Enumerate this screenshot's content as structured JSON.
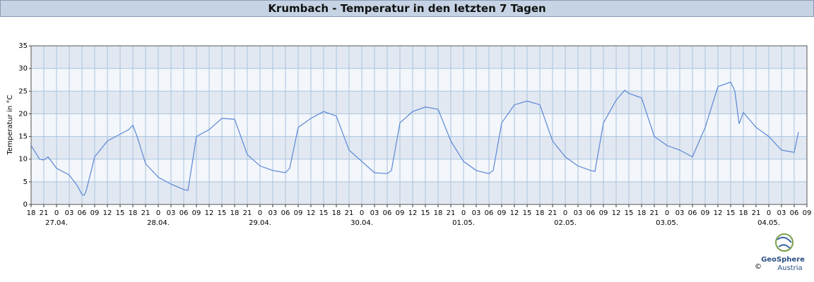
{
  "chart_data": {
    "type": "line",
    "title": "Krumbach - Temperatur in den letzten 7 Tagen",
    "y_label": "Temperatur in °C",
    "color": "#5b87d6",
    "x": [
      0,
      2,
      3,
      4,
      6,
      9,
      11,
      12,
      12.5,
      13,
      15,
      18,
      21,
      23,
      24,
      25,
      27,
      30,
      33,
      36,
      37,
      39,
      42,
      45,
      48,
      51,
      54,
      57,
      60,
      61,
      63,
      66,
      69,
      72,
      75,
      78,
      81,
      84,
      85,
      87,
      90,
      93,
      96,
      99,
      102,
      105,
      108,
      109,
      111,
      114,
      117,
      120,
      123,
      126,
      129,
      132,
      133,
      135,
      138,
      140,
      141,
      144,
      147,
      150,
      153,
      156,
      159,
      162,
      165,
      166,
      167,
      168,
      171,
      174,
      177,
      180,
      181
    ],
    "values": [
      13,
      10,
      9.8,
      10.5,
      8,
      6.5,
      4,
      2.2,
      2,
      3,
      10.5,
      14,
      15.5,
      16.5,
      17.5,
      15,
      9,
      6,
      4.5,
      3.3,
      3.1,
      15,
      16.5,
      19,
      18.8,
      11,
      8.5,
      7.5,
      7,
      8,
      17,
      19,
      20.5,
      19.5,
      12,
      9.5,
      7,
      6.8,
      7.5,
      18,
      20.5,
      21.5,
      21,
      14,
      9.5,
      7.5,
      6.8,
      7.5,
      18,
      22,
      22.8,
      22,
      14,
      10.5,
      8.5,
      7.5,
      7.3,
      18,
      23,
      25.2,
      24.5,
      23.5,
      15,
      13,
      12,
      10.5,
      17,
      26,
      27,
      25,
      17.8,
      20.3,
      17,
      15,
      12,
      11.5,
      16
    ],
    "xlim": [
      0,
      183
    ],
    "ylim": [
      0,
      35
    ],
    "yticks": [
      0,
      5,
      10,
      15,
      20,
      25,
      30,
      35
    ],
    "xticks": [
      {
        "value": 0,
        "label": "18"
      },
      {
        "value": 3,
        "label": "21"
      },
      {
        "value": 6,
        "label": "0"
      },
      {
        "value": 9,
        "label": "03"
      },
      {
        "value": 12,
        "label": "06"
      },
      {
        "value": 15,
        "label": "09"
      },
      {
        "value": 18,
        "label": "12"
      },
      {
        "value": 21,
        "label": "15"
      },
      {
        "value": 24,
        "label": "18"
      },
      {
        "value": 27,
        "label": "21"
      },
      {
        "value": 30,
        "label": "0"
      },
      {
        "value": 33,
        "label": "03"
      },
      {
        "value": 36,
        "label": "06"
      },
      {
        "value": 39,
        "label": "09"
      },
      {
        "value": 42,
        "label": "12"
      },
      {
        "value": 45,
        "label": "15"
      },
      {
        "value": 48,
        "label": "18"
      },
      {
        "value": 51,
        "label": "21"
      },
      {
        "value": 54,
        "label": "0"
      },
      {
        "value": 57,
        "label": "03"
      },
      {
        "value": 60,
        "label": "06"
      },
      {
        "value": 63,
        "label": "09"
      },
      {
        "value": 66,
        "label": "12"
      },
      {
        "value": 69,
        "label": "15"
      },
      {
        "value": 72,
        "label": "18"
      },
      {
        "value": 75,
        "label": "21"
      },
      {
        "value": 78,
        "label": "0"
      },
      {
        "value": 81,
        "label": "03"
      },
      {
        "value": 84,
        "label": "06"
      },
      {
        "value": 87,
        "label": "09"
      },
      {
        "value": 90,
        "label": "12"
      },
      {
        "value": 93,
        "label": "15"
      },
      {
        "value": 96,
        "label": "18"
      },
      {
        "value": 99,
        "label": "21"
      },
      {
        "value": 102,
        "label": "0"
      },
      {
        "value": 105,
        "label": "03"
      },
      {
        "value": 108,
        "label": "06"
      },
      {
        "value": 111,
        "label": "09"
      },
      {
        "value": 114,
        "label": "12"
      },
      {
        "value": 117,
        "label": "15"
      },
      {
        "value": 120,
        "label": "18"
      },
      {
        "value": 123,
        "label": "21"
      },
      {
        "value": 126,
        "label": "0"
      },
      {
        "value": 129,
        "label": "03"
      },
      {
        "value": 132,
        "label": "06"
      },
      {
        "value": 135,
        "label": "09"
      },
      {
        "value": 138,
        "label": "12"
      },
      {
        "value": 141,
        "label": "15"
      },
      {
        "value": 144,
        "label": "18"
      },
      {
        "value": 147,
        "label": "21"
      },
      {
        "value": 150,
        "label": "0"
      },
      {
        "value": 153,
        "label": "03"
      },
      {
        "value": 156,
        "label": "06"
      },
      {
        "value": 159,
        "label": "09"
      },
      {
        "value": 162,
        "label": "12"
      },
      {
        "value": 165,
        "label": "15"
      },
      {
        "value": 168,
        "label": "18"
      },
      {
        "value": 171,
        "label": "21"
      },
      {
        "value": 174,
        "label": "0"
      },
      {
        "value": 177,
        "label": "03"
      },
      {
        "value": 180,
        "label": "06"
      },
      {
        "value": 183,
        "label": "09"
      }
    ],
    "date_ticks": [
      {
        "value": 6,
        "label": "27.04."
      },
      {
        "value": 30,
        "label": "28.04."
      },
      {
        "value": 54,
        "label": "29.04."
      },
      {
        "value": 78,
        "label": "30.04."
      },
      {
        "value": 102,
        "label": "01.05."
      },
      {
        "value": 126,
        "label": "02.05."
      },
      {
        "value": 150,
        "label": "03.05."
      },
      {
        "value": 174,
        "label": "04.05."
      }
    ],
    "grid": true,
    "logo": {
      "name": "GeoSphere",
      "sub": "Austria",
      "copyright": "©"
    }
  }
}
